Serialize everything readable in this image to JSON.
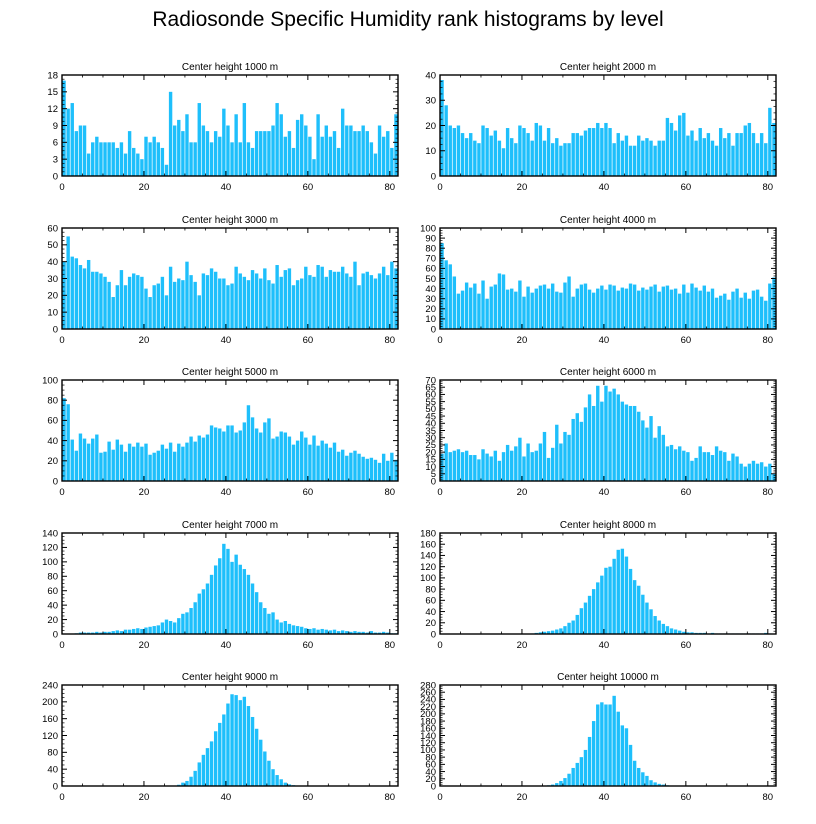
{
  "title": "Radiosonde Specific Humidity rank histograms by level",
  "colors": {
    "bar": "#1EBFFB",
    "axis": "#000000"
  },
  "chart_data": [
    {
      "type": "bar",
      "title": "Center height 1000 m",
      "ylim": [
        0,
        18
      ],
      "yticks": [
        0,
        3,
        6,
        9,
        12,
        15,
        18
      ],
      "xlim": [
        0,
        82
      ],
      "xticks": [
        0,
        20,
        40,
        60,
        80
      ],
      "x_start": 0,
      "values": [
        17,
        12,
        13,
        8,
        9,
        9,
        4,
        6,
        7,
        6,
        6,
        6,
        6,
        5,
        6,
        4,
        8,
        5,
        4,
        3,
        7,
        6,
        7,
        6,
        5,
        2,
        15,
        9,
        10,
        8,
        11,
        6,
        6,
        13,
        9,
        8,
        6,
        8,
        7,
        12,
        9,
        6,
        11,
        6,
        13,
        6,
        5,
        8,
        8,
        8,
        8,
        9,
        13,
        11,
        7,
        8,
        5,
        10,
        11,
        9,
        7,
        3,
        11,
        7,
        9,
        7,
        8,
        5,
        12,
        9,
        9,
        8,
        8,
        9,
        8,
        6,
        4,
        9,
        7,
        8,
        5,
        11
      ]
    },
    {
      "type": "bar",
      "title": "Center height 2000 m",
      "ylim": [
        0,
        40
      ],
      "yticks": [
        0,
        10,
        20,
        30,
        40
      ],
      "xlim": [
        0,
        82
      ],
      "xticks": [
        0,
        20,
        40,
        60,
        80
      ],
      "x_start": 0,
      "values": [
        38,
        28,
        20,
        19,
        20,
        17,
        15,
        17,
        14,
        13,
        20,
        19,
        16,
        18,
        14,
        11,
        19,
        15,
        13,
        20,
        19,
        17,
        14,
        21,
        20,
        14,
        19,
        13,
        15,
        12,
        13,
        13,
        17,
        17,
        16,
        18,
        19,
        19,
        21,
        19,
        21,
        19,
        13,
        17,
        14,
        16,
        12,
        12,
        16,
        14,
        15,
        14,
        12,
        14,
        14,
        23,
        21,
        18,
        24,
        25,
        16,
        18,
        14,
        19,
        15,
        17,
        14,
        12,
        19,
        15,
        17,
        12,
        17,
        17,
        20,
        21,
        17,
        13,
        17,
        13,
        27,
        21
      ]
    },
    {
      "type": "bar",
      "title": "Center height 3000 m",
      "ylim": [
        0,
        60
      ],
      "yticks": [
        0,
        10,
        20,
        30,
        40,
        50,
        60
      ],
      "xlim": [
        0,
        82
      ],
      "xticks": [
        0,
        20,
        40,
        60,
        80
      ],
      "x_start": 0,
      "values": [
        40,
        55,
        43,
        42,
        38,
        36,
        41,
        34,
        34,
        33,
        31,
        28,
        19,
        26,
        35,
        26,
        31,
        33,
        32,
        31,
        24,
        19,
        26,
        27,
        31,
        20,
        37,
        28,
        30,
        29,
        40,
        32,
        28,
        20,
        33,
        32,
        36,
        34,
        30,
        30,
        26,
        27,
        37,
        33,
        31,
        29,
        35,
        33,
        30,
        36,
        29,
        27,
        38,
        31,
        35,
        36,
        26,
        29,
        30,
        37,
        32,
        31,
        38,
        37,
        31,
        35,
        34,
        34,
        37,
        33,
        31,
        40,
        26,
        33,
        34,
        32,
        30,
        33,
        37,
        32,
        40,
        36
      ]
    },
    {
      "type": "bar",
      "title": "Center height 4000 m",
      "ylim": [
        0,
        100
      ],
      "yticks": [
        0,
        10,
        20,
        30,
        40,
        50,
        60,
        70,
        80,
        90,
        100
      ],
      "xlim": [
        0,
        82
      ],
      "xticks": [
        0,
        20,
        40,
        60,
        80
      ],
      "x_start": 0,
      "values": [
        85,
        68,
        64,
        52,
        35,
        38,
        46,
        41,
        45,
        35,
        48,
        30,
        42,
        44,
        55,
        54,
        39,
        40,
        37,
        48,
        32,
        42,
        36,
        40,
        43,
        44,
        40,
        45,
        37,
        36,
        46,
        52,
        32,
        40,
        44,
        45,
        39,
        36,
        40,
        43,
        39,
        44,
        43,
        38,
        41,
        40,
        45,
        44,
        38,
        41,
        39,
        42,
        44,
        37,
        42,
        43,
        39,
        40,
        35,
        44,
        36,
        45,
        41,
        38,
        43,
        37,
        40,
        31,
        33,
        35,
        29,
        37,
        40,
        31,
        36,
        30,
        38,
        39,
        32,
        28,
        45,
        51
      ]
    },
    {
      "type": "bar",
      "title": "Center height 5000 m",
      "ylim": [
        0,
        100
      ],
      "yticks": [
        0,
        20,
        40,
        60,
        80,
        100
      ],
      "xlim": [
        0,
        82
      ],
      "xticks": [
        0,
        20,
        40,
        60,
        80
      ],
      "x_start": 0,
      "values": [
        82,
        76,
        41,
        30,
        47,
        42,
        37,
        42,
        46,
        28,
        29,
        39,
        31,
        41,
        36,
        29,
        37,
        34,
        38,
        34,
        37,
        26,
        28,
        30,
        36,
        32,
        38,
        29,
        37,
        34,
        38,
        44,
        39,
        45,
        43,
        46,
        55,
        53,
        52,
        49,
        55,
        55,
        48,
        50,
        58,
        75,
        63,
        52,
        48,
        58,
        62,
        42,
        44,
        49,
        48,
        44,
        36,
        40,
        49,
        43,
        36,
        45,
        35,
        40,
        37,
        33,
        38,
        29,
        31,
        25,
        28,
        30,
        27,
        24,
        22,
        23,
        21,
        18,
        27,
        20,
        28,
        21
      ]
    },
    {
      "type": "bar",
      "title": "Center height 6000 m",
      "ylim": [
        0,
        70
      ],
      "yticks": [
        0,
        5,
        10,
        15,
        20,
        25,
        30,
        35,
        40,
        45,
        50,
        55,
        60,
        65,
        70
      ],
      "xlim": [
        0,
        82
      ],
      "xticks": [
        0,
        20,
        40,
        60,
        80
      ],
      "x_start": 0,
      "values": [
        19,
        26,
        20,
        21,
        22,
        20,
        21,
        18,
        18,
        15,
        22,
        19,
        17,
        21,
        14,
        20,
        25,
        21,
        24,
        30,
        17,
        26,
        20,
        21,
        26,
        34,
        16,
        23,
        39,
        26,
        34,
        32,
        43,
        47,
        41,
        51,
        60,
        52,
        66,
        55,
        66,
        62,
        64,
        60,
        55,
        53,
        52,
        52,
        48,
        42,
        37,
        45,
        30,
        38,
        32,
        24,
        25,
        22,
        24,
        21,
        20,
        14,
        16,
        24,
        20,
        20,
        18,
        24,
        21,
        20,
        14,
        19,
        17,
        12,
        10,
        12,
        14,
        12,
        13,
        10,
        12,
        5
      ]
    },
    {
      "type": "bar",
      "title": "Center height 7000 m",
      "ylim": [
        0,
        140
      ],
      "yticks": [
        0,
        20,
        40,
        60,
        80,
        100,
        120,
        140
      ],
      "xlim": [
        0,
        82
      ],
      "xticks": [
        0,
        20,
        40,
        60,
        80
      ],
      "x_start": 3,
      "values": [
        1,
        2,
        2,
        2,
        2,
        3,
        2,
        3,
        3,
        4,
        5,
        4,
        6,
        6,
        7,
        8,
        7,
        9,
        10,
        11,
        12,
        16,
        20,
        18,
        16,
        22,
        28,
        30,
        36,
        44,
        56,
        62,
        70,
        82,
        95,
        105,
        125,
        118,
        100,
        110,
        96,
        90,
        82,
        70,
        58,
        44,
        36,
        28,
        30,
        20,
        16,
        18,
        14,
        12,
        11,
        10,
        8,
        7,
        8,
        6,
        7,
        6,
        5,
        6,
        4,
        5,
        4,
        3,
        4,
        3,
        3,
        2,
        4,
        2,
        2,
        3,
        2,
        1,
        1
      ]
    },
    {
      "type": "bar",
      "title": "Center height 8000 m",
      "ylim": [
        0,
        180
      ],
      "yticks": [
        0,
        20,
        40,
        60,
        80,
        100,
        120,
        140,
        160,
        180
      ],
      "xlim": [
        0,
        82
      ],
      "xticks": [
        0,
        20,
        40,
        60,
        80
      ],
      "x_start": 22,
      "values": [
        1,
        2,
        3,
        4,
        5,
        6,
        8,
        10,
        14,
        20,
        24,
        34,
        46,
        56,
        68,
        80,
        92,
        104,
        118,
        120,
        134,
        150,
        152,
        138,
        116,
        96,
        86,
        70,
        56,
        44,
        32,
        24,
        18,
        14,
        10,
        8,
        6,
        4,
        3,
        3,
        2,
        2,
        2,
        1,
        2,
        1,
        1,
        1,
        1,
        1,
        1,
        1,
        1,
        1,
        1,
        1,
        1,
        2,
        1
      ]
    },
    {
      "type": "bar",
      "title": "Center height 9000 m",
      "ylim": [
        0,
        240
      ],
      "yticks": [
        0,
        40,
        80,
        120,
        160,
        200,
        240
      ],
      "xlim": [
        0,
        82
      ],
      "xticks": [
        0,
        20,
        40,
        60,
        80
      ],
      "x_start": 27,
      "values": [
        1,
        3,
        8,
        12,
        22,
        36,
        56,
        74,
        90,
        106,
        130,
        150,
        170,
        196,
        218,
        216,
        204,
        212,
        190,
        164,
        136,
        110,
        82,
        60,
        40,
        26,
        16,
        8,
        4,
        2
      ]
    },
    {
      "type": "bar",
      "title": "Center height 10000 m",
      "ylim": [
        0,
        280
      ],
      "yticks": [
        0,
        20,
        40,
        60,
        80,
        100,
        120,
        140,
        160,
        180,
        200,
        220,
        240,
        260,
        280
      ],
      "xlim": [
        0,
        82
      ],
      "xticks": [
        0,
        20,
        40,
        60,
        80
      ],
      "x_start": 25,
      "values": [
        1,
        2,
        4,
        8,
        14,
        22,
        34,
        50,
        64,
        80,
        100,
        136,
        180,
        226,
        232,
        226,
        226,
        250,
        206,
        168,
        160,
        114,
        70,
        50,
        38,
        28,
        16,
        10,
        6,
        4,
        2
      ]
    }
  ]
}
